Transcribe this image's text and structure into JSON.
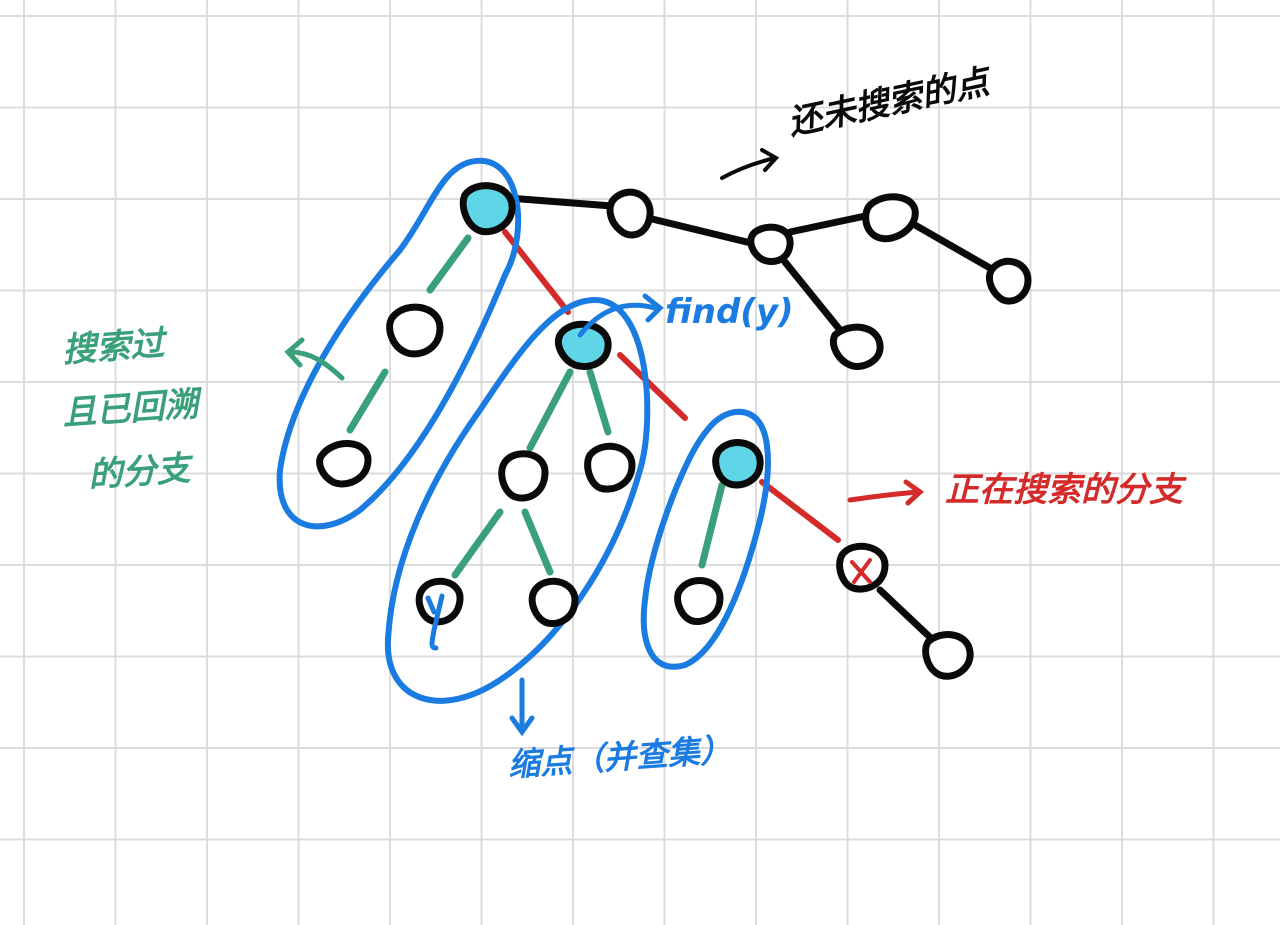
{
  "colors": {
    "black": "#0a0a0a",
    "green": "#3aa07a",
    "red": "#d42a2a",
    "blue": "#1a7be0",
    "cyan": "#5ed6e8",
    "grid": "#dcdcdc"
  },
  "labels": {
    "unsearched": "还未搜索的点",
    "searched_backtracked": [
      "搜索过",
      "且已回溯",
      "的分支"
    ],
    "searching_branch": "正在搜索的分支",
    "find_y": "find(y)",
    "shrunk": "缩点（并查集）",
    "node_y": "y",
    "node_x": "x"
  }
}
